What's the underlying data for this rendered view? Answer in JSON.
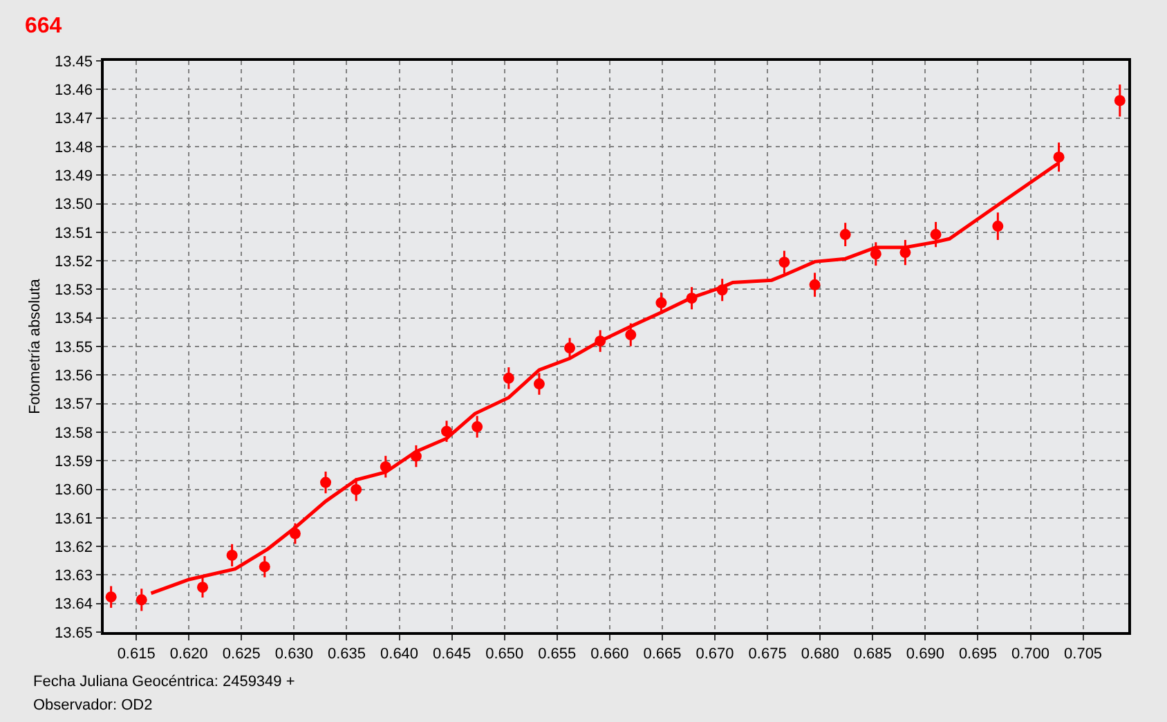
{
  "chart_data": {
    "type": "scatter",
    "title": "664",
    "ylabel": "Fotometría absoluta",
    "annotations": [
      "Fecha Juliana Geocéntrica: 2459349 +",
      "Observador: OD2"
    ],
    "xlim": [
      0.6119,
      0.7093
    ],
    "ylim": [
      13.65,
      13.45
    ],
    "xticks": [
      0.615,
      {
        "value": 0.62,
        "label": "0.620"
      },
      0.625,
      {
        "value": 0.63,
        "label": "0.630"
      },
      0.635,
      {
        "value": 0.64,
        "label": "0.640"
      },
      0.645,
      {
        "value": 0.65,
        "label": "0.650"
      },
      0.655,
      {
        "value": 0.66,
        "label": "0.660"
      },
      0.665,
      {
        "value": 0.67,
        "label": "0.670"
      },
      0.675,
      {
        "value": 0.68,
        "label": "0.680"
      },
      0.685,
      {
        "value": 0.69,
        "label": "0.690"
      },
      0.695,
      {
        "value": 0.7,
        "label": "0.700"
      },
      0.705
    ],
    "yticks": [
      13.45,
      13.46,
      13.47,
      13.48,
      13.49,
      {
        "value": 13.5,
        "label": "13.50"
      },
      13.51,
      13.52,
      13.53,
      13.54,
      13.55,
      13.56,
      13.57,
      13.58,
      13.59,
      {
        "value": 13.6,
        "label": "13.60"
      },
      13.61,
      13.62,
      13.63,
      13.64,
      13.65
    ],
    "grid": true,
    "marker": "circle",
    "series": [
      {
        "color": "#ff0000",
        "x": [
          0.6126,
          0.6155,
          0.6213,
          0.6241,
          0.6272,
          0.6301,
          0.633,
          0.6359,
          0.6387,
          0.6416,
          0.6445,
          0.6474,
          0.6504,
          0.6533,
          0.6562,
          0.6591,
          0.662,
          0.6649,
          0.6678,
          0.6707,
          0.6766,
          0.6795,
          0.6824,
          0.6853,
          0.6881,
          0.691,
          0.6969,
          0.7027,
          0.7085
        ],
        "values": [
          13.6377,
          13.6387,
          13.6343,
          13.6231,
          13.6271,
          13.6155,
          13.5976,
          13.6001,
          13.5921,
          13.5884,
          13.5797,
          13.5781,
          13.5611,
          13.5631,
          13.5505,
          13.5481,
          13.5459,
          13.5347,
          13.5331,
          13.5302,
          13.5205,
          13.5284,
          13.5108,
          13.5176,
          13.5171,
          13.5108,
          13.5079,
          13.4837,
          13.4639
        ],
        "errors": [
          0.0038,
          0.0039,
          0.0036,
          0.0039,
          0.0037,
          0.0036,
          0.0038,
          0.004,
          0.0038,
          0.0038,
          0.0037,
          0.0038,
          0.0038,
          0.0038,
          0.0035,
          0.0038,
          0.004,
          0.0036,
          0.0039,
          0.0039,
          0.004,
          0.0042,
          0.0041,
          0.0041,
          0.0044,
          0.0044,
          0.0048,
          0.0051,
          0.0056
        ]
      },
      {
        "type": "line",
        "color": "#ff0000",
        "marker": "none",
        "x": [
          0.6164,
          0.62,
          0.6244,
          0.6275,
          0.6301,
          0.633,
          0.6359,
          0.6387,
          0.6416,
          0.6445,
          0.6472,
          0.6504,
          0.6533,
          0.6562,
          0.6591,
          0.662,
          0.6649,
          0.6678,
          0.6707,
          0.6717,
          0.6754,
          0.6766,
          0.6795,
          0.6824,
          0.6853,
          0.6881,
          0.691,
          0.6923,
          0.6969,
          0.7027
        ],
        "values": [
          13.6364,
          13.6316,
          13.6279,
          13.6209,
          13.6134,
          13.6042,
          13.5967,
          13.594,
          13.5868,
          13.5822,
          13.5735,
          13.5679,
          13.5582,
          13.5542,
          13.5481,
          13.543,
          13.5381,
          13.5329,
          13.5292,
          13.5276,
          13.5268,
          13.525,
          13.5203,
          13.5193,
          13.5153,
          13.5153,
          13.5134,
          13.5123,
          13.5005,
          13.4857
        ]
      }
    ]
  }
}
